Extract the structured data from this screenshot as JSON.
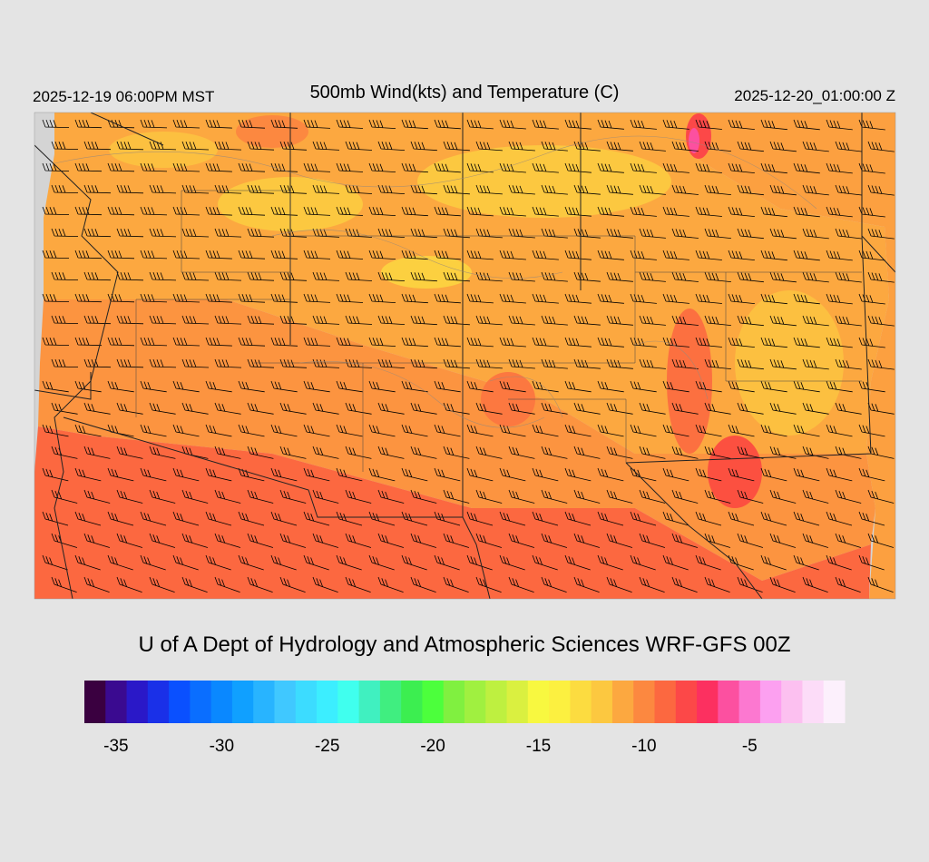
{
  "header": {
    "valid_local": "2025-12-19 06:00PM MST",
    "title": "500mb Wind(kts) and Temperature (C)",
    "valid_utc": "2025-12-20_01:00:00 Z"
  },
  "footer": {
    "credit": "U of A Dept of Hydrology and Atmospheric Sciences WRF-GFS 00Z"
  },
  "colorbar": {
    "units": "C",
    "colors": [
      "#3a0040",
      "#3a0a90",
      "#2a18c8",
      "#1a30e8",
      "#0a50ff",
      "#0a6eff",
      "#0a88ff",
      "#10a0ff",
      "#28b4ff",
      "#40c8ff",
      "#3cdcff",
      "#3ceeff",
      "#40ffee",
      "#40f0c0",
      "#40ee80",
      "#3cee50",
      "#4cff3c",
      "#80f040",
      "#a0f040",
      "#bef040",
      "#daf040",
      "#f8f840",
      "#fcf040",
      "#fcdc40",
      "#fcc840",
      "#fca840",
      "#fc8840",
      "#fc6840",
      "#fc4848",
      "#fc3060",
      "#fc50a0",
      "#fc78d0",
      "#fca0f0",
      "#fcc0f0",
      "#fcdcf8",
      "#fcf0fc"
    ],
    "tick_labels": [
      "-35",
      "-30",
      "-25",
      "-20",
      "-15",
      "-10",
      "-5"
    ],
    "tick_values": [
      -35,
      -30,
      -25,
      -20,
      -15,
      -10,
      -5
    ],
    "min": -36,
    "max": -1,
    "step": 1
  },
  "field": {
    "variable": "500mb temperature",
    "units": "C",
    "colors": {
      "yellow": "#fce040",
      "light_orange": "#fcb040",
      "orange": "#fca040",
      "dark_orange": "#fc8840",
      "red_orange": "#fc6840",
      "red": "#fc4848",
      "pink": "#fc50a0"
    },
    "ocean_color": "#d4d4d4",
    "wind_barb_color": "#000000"
  }
}
